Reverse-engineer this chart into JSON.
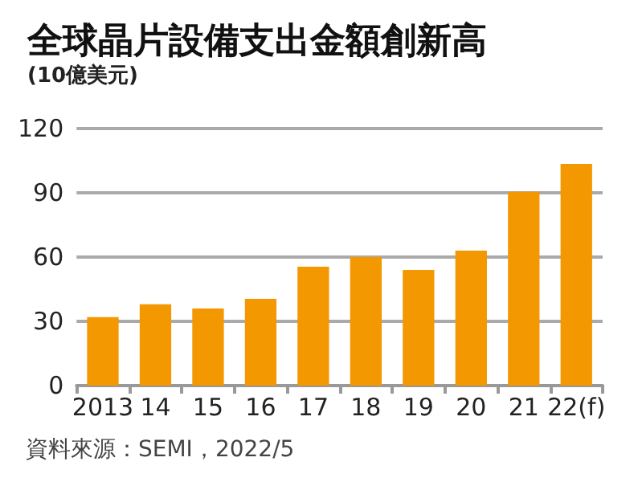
{
  "chart_data": {
    "type": "bar",
    "title": "全球晶片設備支出金額創新高",
    "subtitle": "(10億美元)",
    "categories": [
      "2013",
      "14",
      "15",
      "16",
      "17",
      "18",
      "19",
      "20",
      "21",
      "22(f)"
    ],
    "values": [
      32,
      38,
      36,
      40.5,
      55.5,
      60,
      54,
      63,
      90.5,
      103.5
    ],
    "color": "#f39800",
    "ylim": [
      0,
      120
    ],
    "yticks": [
      0,
      30,
      60,
      90,
      120
    ],
    "grid": "y",
    "annotations": [
      "資料來源：SEMI，2022/5"
    ]
  }
}
